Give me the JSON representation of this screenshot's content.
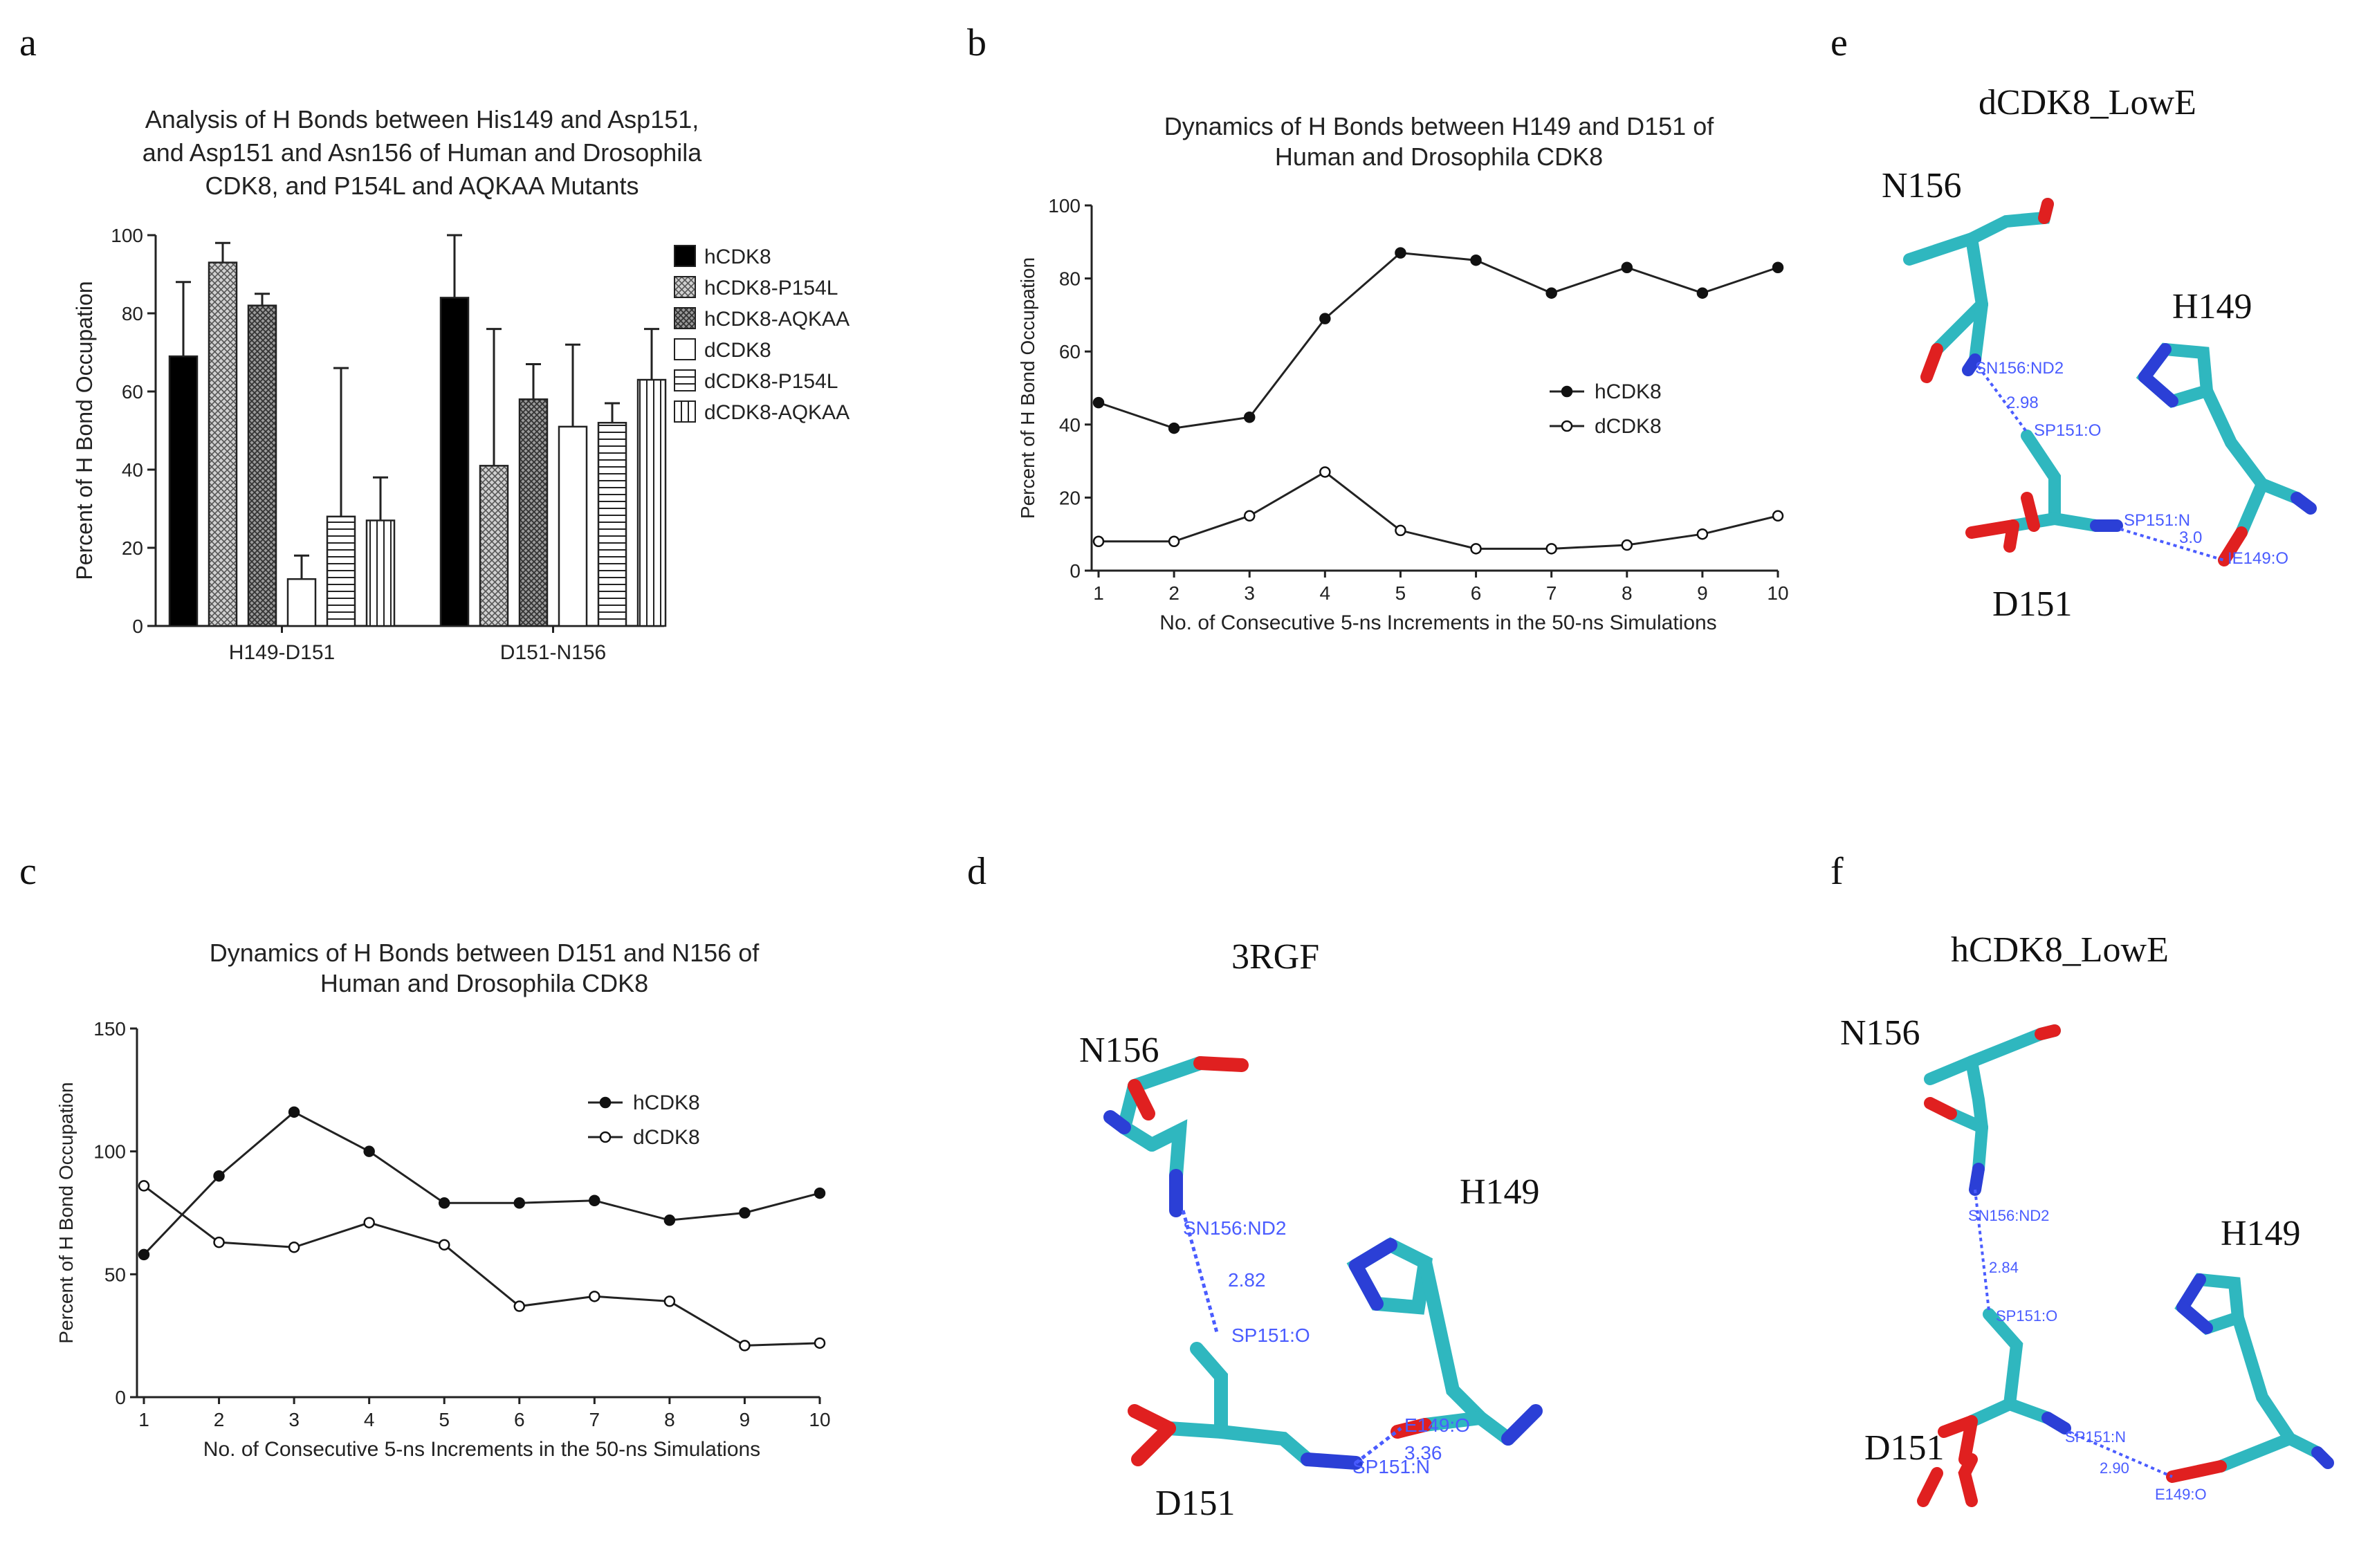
{
  "panels": {
    "a": {
      "label": "a"
    },
    "b": {
      "label": "b"
    },
    "c": {
      "label": "c"
    },
    "d": {
      "label": "d"
    },
    "e": {
      "label": "e"
    },
    "f": {
      "label": "f"
    }
  },
  "chart_data": [
    {
      "id": "a",
      "type": "bar",
      "title_lines": [
        "Analysis of H Bonds between His149 and Asp151,",
        "and Asp151 and Asn156 of Human and Drosophila",
        "CDK8, and P154L and AQKAA Mutants"
      ],
      "ylabel": "Percent of H Bond Occupation",
      "xlabel": "",
      "ylim": [
        0,
        100
      ],
      "yticks": [
        "0",
        "20",
        "40",
        "60",
        "80",
        "100"
      ],
      "categories": [
        "H149-D151",
        "D151-N156"
      ],
      "legend_position": "right",
      "series": [
        {
          "name": "hCDK8",
          "fill": "#000000",
          "values": [
            69,
            84
          ],
          "errors": [
            19,
            16
          ]
        },
        {
          "name": "hCDK8-P154L",
          "fill": "crosshatch-light",
          "values": [
            93,
            41
          ],
          "errors": [
            5,
            35
          ]
        },
        {
          "name": "hCDK8-AQKAA",
          "fill": "crosshatch-dark",
          "values": [
            82,
            58
          ],
          "errors": [
            3,
            9
          ]
        },
        {
          "name": "dCDK8",
          "fill": "#ffffff",
          "values": [
            12,
            51
          ],
          "errors": [
            6,
            21
          ]
        },
        {
          "name": "dCDK8-P154L",
          "fill": "horizontal-lines",
          "values": [
            28,
            52
          ],
          "errors": [
            38,
            5
          ]
        },
        {
          "name": "dCDK8-AQKAA",
          "fill": "vertical-lines",
          "values": [
            27,
            63
          ],
          "errors": [
            11,
            13
          ]
        }
      ]
    },
    {
      "id": "b",
      "type": "line",
      "title_lines": [
        "Dynamics of H Bonds between H149 and D151 of",
        "Human and Drosophila CDK8"
      ],
      "ylabel": "Percent of H Bond Occupation",
      "xlabel": "No. of Consecutive 5-ns Increments in the 50-ns Simulations",
      "ylim": [
        0,
        100
      ],
      "yticks": [
        "0",
        "20",
        "40",
        "60",
        "80",
        "100"
      ],
      "x": [
        1,
        2,
        3,
        4,
        5,
        6,
        7,
        8,
        9,
        10
      ],
      "xticks": [
        "1",
        "2",
        "3",
        "4",
        "5",
        "6",
        "7",
        "8",
        "9",
        "10"
      ],
      "legend_position": "center-right",
      "series": [
        {
          "name": "hCDK8",
          "marker": "filled",
          "values": [
            46,
            39,
            42,
            69,
            87,
            85,
            76,
            83,
            76,
            83
          ]
        },
        {
          "name": "dCDK8",
          "marker": "open",
          "values": [
            8,
            8,
            15,
            27,
            11,
            6,
            6,
            7,
            10,
            15
          ]
        }
      ]
    },
    {
      "id": "c",
      "type": "line",
      "title_lines": [
        "Dynamics of H Bonds between D151 and N156 of",
        "Human and Drosophila CDK8"
      ],
      "ylabel": "Percent of H Bond Occupation",
      "xlabel": "No. of Consecutive 5-ns Increments in the 50-ns Simulations",
      "ylim": [
        0,
        150
      ],
      "yticks": [
        "0",
        "50",
        "100",
        "150"
      ],
      "x": [
        1,
        2,
        3,
        4,
        5,
        6,
        7,
        8,
        9,
        10
      ],
      "xticks": [
        "1",
        "2",
        "3",
        "4",
        "5",
        "6",
        "7",
        "8",
        "9",
        "10"
      ],
      "legend_position": "top-right",
      "series": [
        {
          "name": "hCDK8",
          "marker": "filled",
          "values": [
            58,
            90,
            116,
            100,
            79,
            79,
            80,
            72,
            75,
            83
          ]
        },
        {
          "name": "dCDK8",
          "marker": "open",
          "values": [
            86,
            63,
            61,
            71,
            62,
            37,
            41,
            39,
            21,
            22
          ]
        }
      ]
    }
  ],
  "structures": {
    "d": {
      "title": "3RGF",
      "residues": [
        "N156",
        "H149",
        "D151"
      ],
      "annotations": [
        "SN156:ND2",
        "2.82",
        "SP151:O",
        "SP151:N",
        "3.36",
        "E149:O"
      ]
    },
    "e": {
      "title": "dCDK8_LowE",
      "residues": [
        "N156",
        "H149",
        "D151"
      ],
      "annotations": [
        "SN156:ND2",
        "2.98",
        "SP151:O",
        "SP151:N",
        "3.0",
        "IE149:O"
      ]
    },
    "f": {
      "title": "hCDK8_LowE",
      "residues": [
        "N156",
        "H149",
        "D151"
      ],
      "annotations": [
        "SN156:ND2",
        "2.84",
        "SP151:O",
        "SP151:N",
        "2.90",
        "E149:O"
      ]
    }
  },
  "colors": {
    "carbon": "#2fb7bf",
    "nitrogen": "#2b3fd6",
    "oxygen": "#e02020",
    "hbond": "#4a5cff"
  }
}
